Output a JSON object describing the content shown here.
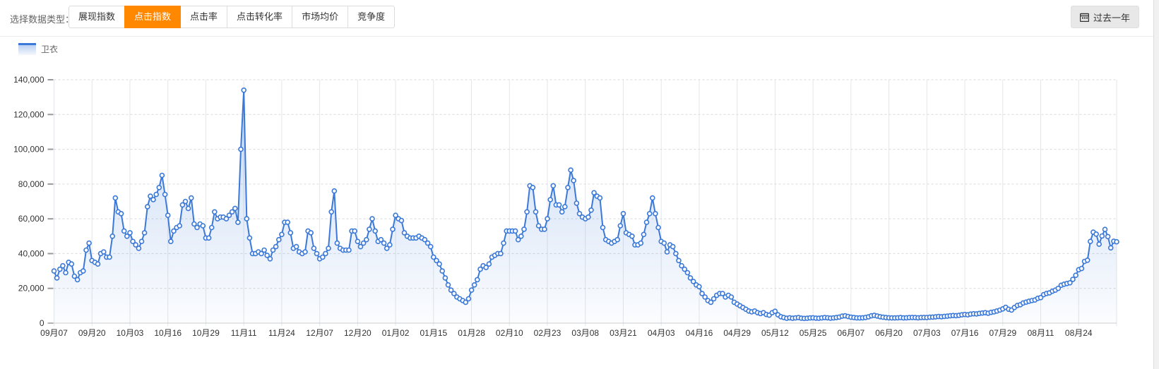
{
  "header": {
    "label": "选择数据类型：",
    "tabs": [
      {
        "label": "展现指数",
        "active": false
      },
      {
        "label": "点击指数",
        "active": true
      },
      {
        "label": "点击率",
        "active": false
      },
      {
        "label": "点击转化率",
        "active": false
      },
      {
        "label": "市场均价",
        "active": false
      },
      {
        "label": "竞争度",
        "active": false
      }
    ],
    "active_color": "#ff8800",
    "range_button": {
      "label": "过去一年",
      "icon": "calendar-icon"
    }
  },
  "legend": {
    "label": "卫衣",
    "color": "#3b79d8"
  },
  "chart_data": {
    "type": "line",
    "title": "",
    "xlabel": "",
    "ylabel": "",
    "ylim": [
      0,
      140000
    ],
    "y_tick_step": 20000,
    "y_tick_labels": [
      "0",
      "20,000",
      "40,000",
      "60,000",
      "80,000",
      "100,000",
      "120,000",
      "140,000"
    ],
    "grid": true,
    "legend_position": "top-left",
    "marker": "circle",
    "area_fill": true,
    "x_label_interval_days": 13,
    "x_labels": [
      "09月07",
      "09月20",
      "10月03",
      "10月16",
      "10月29",
      "11月11",
      "11月24",
      "12月07",
      "12月20",
      "01月02",
      "01月15",
      "01月28",
      "02月10",
      "02月23",
      "03月08",
      "03月21",
      "04月03",
      "04月16",
      "04月29",
      "05月12",
      "05月25",
      "06月07",
      "06月20",
      "07月03",
      "07月16",
      "07月29",
      "08月11",
      "08月24"
    ],
    "series": [
      {
        "name": "卫衣",
        "color": "#3b79d8",
        "values": [
          30000,
          26000,
          31000,
          33000,
          29000,
          35000,
          34000,
          27000,
          25000,
          29000,
          30000,
          42000,
          46000,
          36000,
          35000,
          34000,
          40000,
          41000,
          38000,
          38000,
          50000,
          72000,
          64000,
          63000,
          53000,
          50000,
          52000,
          47000,
          45000,
          43000,
          47000,
          52000,
          67000,
          73000,
          71000,
          74000,
          78000,
          85000,
          74000,
          62000,
          47000,
          53000,
          55000,
          56000,
          68000,
          70000,
          66000,
          72000,
          57000,
          55000,
          57000,
          56000,
          49000,
          49000,
          55000,
          64000,
          60000,
          61000,
          61000,
          60000,
          62000,
          64000,
          66000,
          58000,
          100000,
          134000,
          60000,
          49000,
          40000,
          40000,
          41000,
          40000,
          42000,
          39000,
          37000,
          42000,
          44000,
          48000,
          51000,
          58000,
          58000,
          52000,
          43000,
          44000,
          41000,
          40000,
          41000,
          53000,
          52000,
          43000,
          40000,
          37000,
          38000,
          40000,
          43000,
          64000,
          76000,
          46000,
          43000,
          42000,
          42000,
          42000,
          53000,
          53000,
          47000,
          44000,
          46000,
          48000,
          54000,
          60000,
          53000,
          47000,
          48000,
          46000,
          43000,
          45000,
          54000,
          62000,
          60000,
          59000,
          52000,
          50000,
          49000,
          49000,
          49000,
          50000,
          49000,
          48000,
          46000,
          44000,
          38000,
          36000,
          34000,
          30000,
          26000,
          22000,
          19000,
          17000,
          15000,
          14000,
          13000,
          12000,
          14000,
          19000,
          22000,
          25000,
          31000,
          33000,
          32000,
          34000,
          38000,
          39000,
          40000,
          40000,
          46000,
          53000,
          53000,
          53000,
          53000,
          48000,
          50000,
          54000,
          64000,
          79000,
          78000,
          64000,
          56000,
          54000,
          54000,
          60000,
          71000,
          79000,
          68000,
          68000,
          64000,
          67000,
          78000,
          88000,
          82000,
          69000,
          63000,
          61000,
          60000,
          61000,
          65000,
          75000,
          73000,
          72000,
          55000,
          48000,
          47000,
          46000,
          47000,
          48000,
          56000,
          63000,
          52000,
          51000,
          50000,
          45000,
          45000,
          46000,
          51000,
          58000,
          63000,
          72000,
          63000,
          55000,
          47000,
          46000,
          41000,
          45000,
          44000,
          40000,
          36000,
          33000,
          31000,
          29000,
          26000,
          24000,
          22000,
          21000,
          17000,
          15000,
          13000,
          12000,
          14000,
          16000,
          17000,
          17000,
          15000,
          16000,
          15000,
          12000,
          11000,
          10000,
          9000,
          8000,
          7000,
          6500,
          7000,
          6000,
          5500,
          6000,
          5000,
          4600,
          6000,
          6800,
          4800,
          3700,
          3200,
          2800,
          3100,
          2800,
          3000,
          3200,
          2900,
          2700,
          2800,
          3000,
          3100,
          2900,
          2800,
          3000,
          3200,
          3100,
          2900,
          3000,
          3200,
          3500,
          4000,
          4200,
          3800,
          3400,
          3200,
          3000,
          3000,
          3100,
          3300,
          3600,
          4200,
          4500,
          4100,
          3700,
          3400,
          3200,
          3100,
          3000,
          3000,
          3100,
          3200,
          3000,
          3100,
          3200,
          3300,
          3200,
          3100,
          3200,
          3300,
          3200,
          3400,
          3500,
          3600,
          3800,
          3700,
          3900,
          4000,
          4200,
          4400,
          4300,
          4500,
          4800,
          5000,
          4800,
          5200,
          5400,
          5300,
          5600,
          5800,
          6000,
          5700,
          6200,
          6500,
          7000,
          7500,
          8200,
          9100,
          8000,
          7500,
          9000,
          10200,
          10600,
          11600,
          12100,
          12600,
          13000,
          13300,
          14300,
          14700,
          16400,
          17100,
          17400,
          18400,
          19000,
          20000,
          21800,
          22400,
          22800,
          23200,
          25200,
          27500,
          30700,
          31400,
          35500,
          36200,
          47000,
          52300,
          51200,
          45400,
          50100,
          53900,
          49800,
          43300,
          47100,
          46800
        ]
      }
    ]
  }
}
